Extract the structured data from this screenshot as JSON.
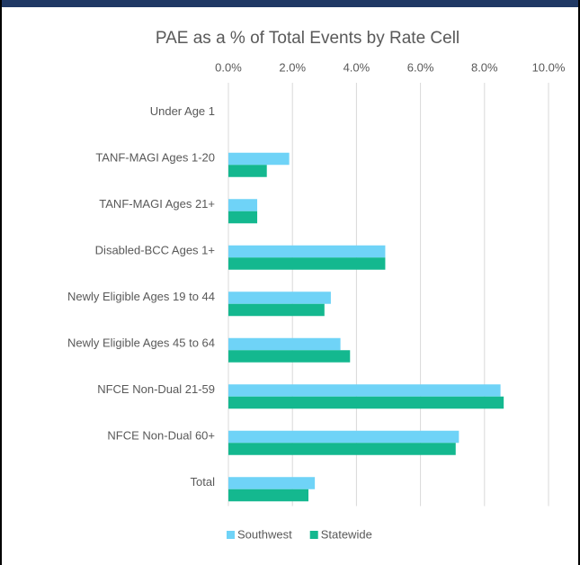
{
  "chart_data": {
    "type": "bar",
    "orientation": "horizontal",
    "title": "PAE as a % of Total Events by Rate Cell",
    "categories": [
      "Under Age 1",
      "TANF-MAGI Ages 1-20",
      "TANF-MAGI Ages 21+",
      "Disabled-BCC Ages 1+",
      "Newly Eligible Ages 19 to 44",
      "Newly Eligible Ages 45 to 64",
      "NFCE Non-Dual 21-59",
      "NFCE Non-Dual 60+",
      "Total"
    ],
    "series": [
      {
        "name": "Southwest",
        "color": "#6fd3f7",
        "values": [
          0,
          1.9,
          0.9,
          4.9,
          3.2,
          3.5,
          8.5,
          7.2,
          2.7
        ]
      },
      {
        "name": "Statewide",
        "color": "#14b88f",
        "values": [
          0,
          1.2,
          0.9,
          4.9,
          3.0,
          3.8,
          8.6,
          7.1,
          2.5
        ]
      }
    ],
    "xlim": [
      0,
      10
    ],
    "xticks": [
      {
        "value": 0,
        "label": "0.0%"
      },
      {
        "value": 2,
        "label": "2.0%"
      },
      {
        "value": 4,
        "label": "4.0%"
      },
      {
        "value": 6,
        "label": "6.0%"
      },
      {
        "value": 8,
        "label": "8.0%"
      },
      {
        "value": 10,
        "label": "10.0%"
      }
    ],
    "grid": true,
    "legend": "bottom"
  }
}
